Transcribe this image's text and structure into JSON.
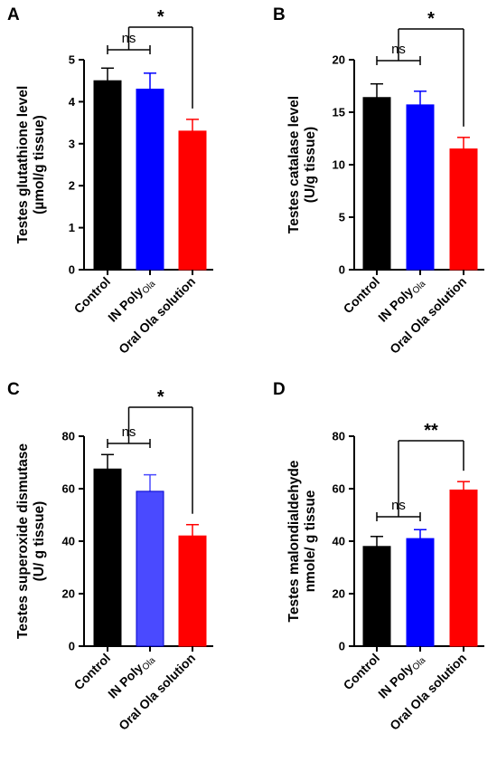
{
  "chart_data": [
    {
      "panel": "A",
      "type": "bar",
      "categories": [
        {
          "text": "Control",
          "sub": ""
        },
        {
          "text": "IN Poly",
          "sub": "Ola"
        },
        {
          "text": "Oral Ola solution",
          "sub": ""
        }
      ],
      "values": [
        4.5,
        4.3,
        3.3
      ],
      "errors": [
        0.3,
        0.38,
        0.28
      ],
      "colors": [
        "#000000",
        "#0000ff",
        "#ff0000"
      ],
      "ylabel": [
        "Testes glutathione level",
        "(µmol/g tissue)"
      ],
      "ylim": [
        0,
        5
      ],
      "yticks": [
        0,
        1,
        2,
        3,
        4,
        5
      ],
      "annotations": [
        {
          "type": "ns",
          "from": 0,
          "to": 1,
          "text": "ns"
        },
        {
          "type": "star",
          "from": 0,
          "to": 2,
          "text": "*"
        }
      ]
    },
    {
      "panel": "B",
      "type": "bar",
      "categories": [
        {
          "text": "Control",
          "sub": ""
        },
        {
          "text": "IN Poly",
          "sub": "Ola"
        },
        {
          "text": "Oral Ola solution",
          "sub": ""
        }
      ],
      "values": [
        16.4,
        15.7,
        11.5
      ],
      "errors": [
        1.3,
        1.3,
        1.1
      ],
      "colors": [
        "#000000",
        "#0000ff",
        "#ff0000"
      ],
      "ylabel": [
        "Testes catalase level",
        "(U/g tissue)"
      ],
      "ylim": [
        0,
        20
      ],
      "yticks": [
        0,
        5,
        10,
        15,
        20
      ],
      "annotations": [
        {
          "type": "ns",
          "from": 0,
          "to": 1,
          "text": "ns"
        },
        {
          "type": "star",
          "from": 0,
          "to": 2,
          "text": "*"
        }
      ]
    },
    {
      "panel": "C",
      "type": "bar",
      "categories": [
        {
          "text": "Control",
          "sub": ""
        },
        {
          "text": "IN Poly",
          "sub": "Ola"
        },
        {
          "text": "Oral Ola solution",
          "sub": ""
        }
      ],
      "values": [
        67.5,
        59,
        42
      ],
      "errors": [
        5.5,
        6.3,
        4.3
      ],
      "colors": [
        "#000000",
        "#4a4aff",
        "#ff0000"
      ],
      "ylabel": [
        "Testes superoxide dismutase",
        "(U/ g tissue)"
      ],
      "ylim": [
        0,
        80
      ],
      "yticks": [
        0,
        20,
        40,
        60,
        80
      ],
      "annotations": [
        {
          "type": "ns",
          "from": 0,
          "to": 1,
          "text": "ns"
        },
        {
          "type": "star",
          "from": 0,
          "to": 2,
          "text": "*"
        }
      ]
    },
    {
      "panel": "D",
      "type": "bar",
      "categories": [
        {
          "text": "Control",
          "sub": ""
        },
        {
          "text": "IN Poly",
          "sub": "Ola"
        },
        {
          "text": "Oral Ola solution",
          "sub": ""
        }
      ],
      "values": [
        38,
        41,
        59.5
      ],
      "errors": [
        3.8,
        3.4,
        3.2
      ],
      "colors": [
        "#000000",
        "#0000ff",
        "#ff0000"
      ],
      "ylabel": [
        "Testes malondialdehyde",
        "nmole/ g tissue"
      ],
      "ylim": [
        0,
        80
      ],
      "yticks": [
        0,
        20,
        40,
        60,
        80
      ],
      "annotations": [
        {
          "type": "ns",
          "from": 0,
          "to": 1,
          "text": "ns"
        },
        {
          "type": "star",
          "from": 0,
          "to": 2,
          "text": "**"
        }
      ]
    }
  ]
}
